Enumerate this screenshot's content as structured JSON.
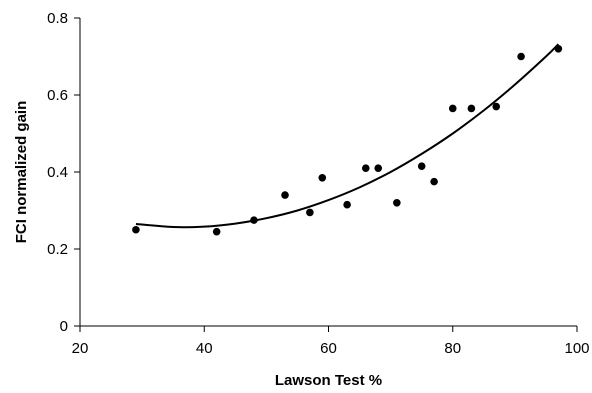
{
  "chart_data": {
    "type": "scatter",
    "title": "",
    "xlabel": "Lawson Test %",
    "ylabel": "FCI normalized gain",
    "xlim": [
      20,
      100
    ],
    "ylim": [
      0,
      0.8
    ],
    "x_ticks": [
      20,
      40,
      60,
      80,
      100
    ],
    "y_ticks": [
      0,
      0.2,
      0.4,
      0.6,
      0.8
    ],
    "x_tick_labels": [
      "20",
      "40",
      "60",
      "80",
      "100"
    ],
    "y_tick_labels": [
      "0",
      "0.2",
      "0.4",
      "0.6",
      "0.8"
    ],
    "grid": false,
    "legend": "none",
    "colors": {
      "points": "#000000",
      "trend": "#000000",
      "axes": "#000000"
    },
    "series": [
      {
        "type": "scatter",
        "points": [
          {
            "x": 29,
            "y": 0.25
          },
          {
            "x": 42,
            "y": 0.245
          },
          {
            "x": 48,
            "y": 0.275
          },
          {
            "x": 53,
            "y": 0.34
          },
          {
            "x": 57,
            "y": 0.295
          },
          {
            "x": 59,
            "y": 0.385
          },
          {
            "x": 63,
            "y": 0.315
          },
          {
            "x": 66,
            "y": 0.41
          },
          {
            "x": 68,
            "y": 0.41
          },
          {
            "x": 71,
            "y": 0.32
          },
          {
            "x": 75,
            "y": 0.415
          },
          {
            "x": 77,
            "y": 0.375
          },
          {
            "x": 80,
            "y": 0.565
          },
          {
            "x": 83,
            "y": 0.565
          },
          {
            "x": 87,
            "y": 0.57
          },
          {
            "x": 91,
            "y": 0.7
          },
          {
            "x": 97,
            "y": 0.72
          }
        ]
      },
      {
        "type": "trendline",
        "fit": "polynomial-2",
        "points": [
          {
            "x": 29,
            "y": 0.265
          },
          {
            "x": 35,
            "y": 0.257
          },
          {
            "x": 40,
            "y": 0.258
          },
          {
            "x": 45,
            "y": 0.266
          },
          {
            "x": 50,
            "y": 0.28
          },
          {
            "x": 55,
            "y": 0.3
          },
          {
            "x": 60,
            "y": 0.327
          },
          {
            "x": 65,
            "y": 0.36
          },
          {
            "x": 70,
            "y": 0.4
          },
          {
            "x": 75,
            "y": 0.447
          },
          {
            "x": 80,
            "y": 0.5
          },
          {
            "x": 85,
            "y": 0.56
          },
          {
            "x": 90,
            "y": 0.627
          },
          {
            "x": 95,
            "y": 0.7
          },
          {
            "x": 97,
            "y": 0.732
          }
        ]
      }
    ]
  }
}
